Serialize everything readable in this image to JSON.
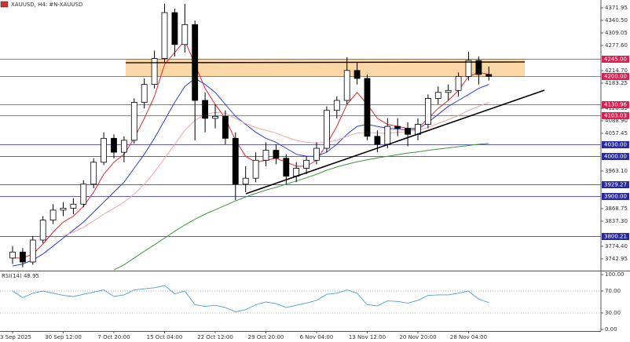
{
  "chart_data": [
    {
      "type": "candlestick",
      "title": "XAUUSD, H4:  #N-XAUUSD",
      "categories": [
        "3 Sep 2025",
        null,
        null,
        null,
        null,
        "30 Sep 12:00",
        null,
        null,
        null,
        null,
        "7 Oct 20:00",
        null,
        null,
        null,
        null,
        "15 Oct 04:00",
        null,
        null,
        null,
        null,
        "22 Oct 12:00",
        null,
        null,
        null,
        null,
        "29 Oct 20:00",
        null,
        null,
        null,
        null,
        "6 Nov 04:00",
        null,
        null,
        null,
        null,
        "13 Nov 12:00",
        null,
        null,
        null,
        null,
        "20 Nov 20:00",
        null,
        null,
        null,
        null,
        "28 Nov 04:00",
        null,
        null
      ],
      "open": [
        3745,
        3760,
        3735,
        3790,
        3840,
        3865,
        3870,
        3880,
        3930,
        3985,
        4045,
        4010,
        4040,
        4135,
        4180,
        4245,
        4360,
        4280,
        4330,
        4140,
        4095,
        4100,
        4045,
        3930,
        3945,
        3990,
        4015,
        3995,
        3950,
        3970,
        3990,
        4020,
        4115,
        4140,
        4215,
        4195,
        4050,
        4030,
        4075,
        4070,
        4055,
        4080,
        4145,
        4160,
        4165,
        4200,
        4240,
        4205
      ],
      "high": [
        3775,
        3770,
        3800,
        3850,
        3880,
        3885,
        3895,
        3940,
        3995,
        4060,
        4055,
        4050,
        4145,
        4195,
        4265,
        4382,
        4370,
        4382,
        4340,
        4160,
        4130,
        4115,
        4060,
        3975,
        4010,
        4035,
        4030,
        4005,
        3985,
        4000,
        4035,
        4125,
        4150,
        4248,
        4235,
        4205,
        4065,
        4095,
        4095,
        4085,
        4095,
        4155,
        4175,
        4180,
        4210,
        4262,
        4250,
        4225
      ],
      "low": [
        3730,
        3722,
        3728,
        3782,
        3830,
        3850,
        3855,
        3872,
        3920,
        3978,
        3995,
        3985,
        4032,
        4120,
        4170,
        4235,
        4250,
        4260,
        4040,
        4060,
        4070,
        4030,
        3890,
        3910,
        3935,
        3975,
        3980,
        3930,
        3935,
        3955,
        3980,
        4010,
        4095,
        4130,
        4180,
        4040,
        4010,
        4020,
        4050,
        4025,
        4040,
        4070,
        4130,
        4140,
        4150,
        4190,
        4180,
        4190
      ],
      "close": [
        3760,
        3735,
        3790,
        3840,
        3865,
        3870,
        3880,
        3930,
        3985,
        4045,
        4010,
        4040,
        4135,
        4180,
        4245,
        4360,
        4280,
        4330,
        4140,
        4095,
        4100,
        4045,
        3930,
        3945,
        3990,
        4015,
        3995,
        3950,
        3970,
        3990,
        4020,
        4115,
        4140,
        4215,
        4195,
        4050,
        4030,
        4075,
        4070,
        4055,
        4080,
        4145,
        4160,
        4165,
        4200,
        4240,
        4205,
        4200
      ],
      "up_color": "#ffffff",
      "down_color": "#000000",
      "lines": [
        {
          "color": "#e8262e",
          "values": [
            3745,
            3745,
            3755,
            3780,
            3810,
            3835,
            3850,
            3875,
            3910,
            3955,
            3985,
            4005,
            4045,
            4095,
            4150,
            4230,
            4260,
            4290,
            4230,
            4170,
            4130,
            4095,
            4040,
            4000,
            3985,
            3990,
            3995,
            3985,
            3975,
            3975,
            3990,
            4030,
            4075,
            4130,
            4160,
            4130,
            4095,
            4080,
            4075,
            4070,
            4070,
            4095,
            4120,
            4140,
            4165,
            4200,
            4210,
            4205
          ]
        },
        {
          "color": "#2b3fd6",
          "values": [
            3725,
            3730,
            3740,
            3755,
            3775,
            3795,
            3815,
            3835,
            3860,
            3885,
            3910,
            3935,
            3970,
            4005,
            4045,
            4090,
            4135,
            4175,
            4195,
            4180,
            4160,
            4130,
            4100,
            4080,
            4060,
            4045,
            4035,
            4020,
            4005,
            4000,
            4000,
            4010,
            4030,
            4055,
            4075,
            4080,
            4075,
            4070,
            4068,
            4066,
            4068,
            4085,
            4105,
            4125,
            4140,
            4155,
            4170,
            4180
          ]
        },
        {
          "color": "#f5a3a3",
          "values": [
            null,
            null,
            null,
            null,
            null,
            3800,
            3810,
            3822,
            3838,
            3855,
            3870,
            3885,
            3905,
            3930,
            3960,
            3995,
            4030,
            4065,
            4090,
            4105,
            4110,
            4108,
            4095,
            4082,
            4072,
            4065,
            4058,
            4048,
            4040,
            4035,
            4033,
            4035,
            4040,
            4050,
            4058,
            4060,
            4058,
            4058,
            4060,
            4062,
            4065,
            4072,
            4082,
            4092,
            4102,
            4115,
            4125,
            4135
          ]
        },
        {
          "color": "#3a9a3a",
          "values": [
            null,
            null,
            null,
            null,
            null,
            null,
            null,
            null,
            null,
            null,
            3715,
            3728,
            3745,
            3762,
            3778,
            3795,
            3812,
            3828,
            3842,
            3855,
            3866,
            3877,
            3888,
            3898,
            3907,
            3915,
            3922,
            3930,
            3938,
            3946,
            3955,
            3965,
            3973,
            3980,
            3986,
            3991,
            3996,
            4000,
            4004,
            4008,
            4011,
            4015,
            4018,
            4021,
            4024,
            4027,
            4030,
            4032
          ]
        }
      ],
      "levels": [
        {
          "value": 4245,
          "label": "4245.00",
          "color": "#dc1e50"
        },
        {
          "value": 4200,
          "label": "4200.00",
          "color": "#dc1e50"
        },
        {
          "value": 4130.96,
          "label": "4130.96",
          "color": "#dc1e50"
        },
        {
          "value": 4103.03,
          "label": "4103.03",
          "color": "#dc1e50"
        },
        {
          "value": 4030,
          "label": "4030.00",
          "color": "#2a2aa0"
        },
        {
          "value": 4000,
          "label": "4000.00",
          "color": "#2a2aa0"
        },
        {
          "value": 3929.27,
          "label": "3929.27",
          "color": "#2a2aa0"
        },
        {
          "value": 3900,
          "label": "3900.00",
          "color": "#2a2aa0"
        },
        {
          "value": 3800.21,
          "label": "3800.21",
          "color": "#2a2aa0"
        }
      ],
      "ylim": [
        3713.4,
        4391.6
      ],
      "yticks": [
        4371.95,
        {
          "value": 4340.5,
          "label": "4340.50"
        },
        4309.05,
        {
          "value": 4277.6,
          "label": "4277.60"
        },
        {
          "value": 4214.7,
          "label": "4214.70"
        },
        4183.25,
        4120.35,
        {
          "value": 4088.9,
          "label": "4088.90"
        },
        4057.45,
        {
          "value": 3963.1,
          "label": "3963.10"
        },
        3868.75,
        {
          "value": 3837.3,
          "label": "3837.30"
        },
        {
          "value": 3774.4,
          "label": "3774.40"
        },
        3742.95
      ]
    },
    {
      "type": "line",
      "title": "RSI(14) 48.95",
      "color": "#4a9ee0",
      "values": [
        70,
        58,
        66,
        70,
        66,
        62,
        60,
        64,
        68,
        72,
        60,
        63,
        72,
        74,
        76,
        80,
        65,
        70,
        45,
        42,
        44,
        40,
        32,
        36,
        45,
        50,
        47,
        40,
        44,
        48,
        53,
        64,
        66,
        72,
        66,
        45,
        43,
        52,
        51,
        48,
        53,
        62,
        63,
        63,
        66,
        70,
        55,
        48.95
      ],
      "ylim": [
        -2.9,
        104.3
      ],
      "yticks": [
        {
          "value": 100,
          "label": "100.00"
        },
        {
          "value": 70,
          "label": "70.00"
        },
        {
          "value": 30,
          "label": "30.00"
        },
        {
          "value": 0,
          "label": "0.00"
        }
      ],
      "grid": [
        1,
        2
      ]
    }
  ]
}
